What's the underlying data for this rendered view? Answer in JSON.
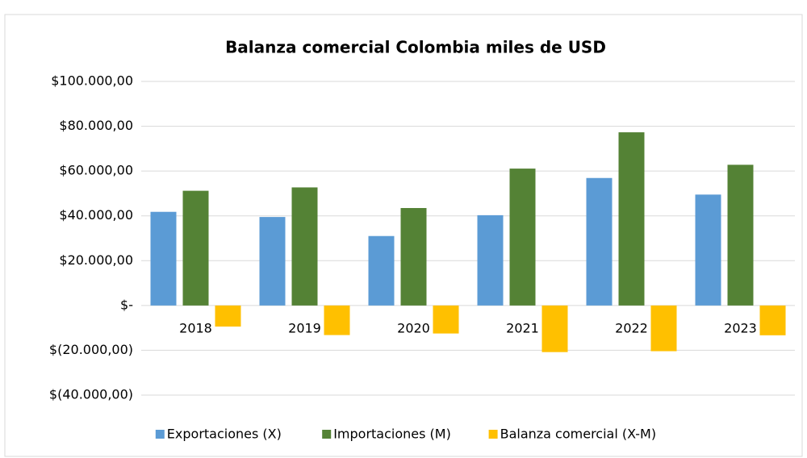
{
  "chart_data": {
    "type": "bar",
    "title": "Balanza comercial Colombia miles de USD",
    "categories": [
      "2018",
      "2019",
      "2020",
      "2021",
      "2022",
      "2023"
    ],
    "series": [
      {
        "name": "Exportaciones (X)",
        "color": "#5b9bd5",
        "values": [
          41800,
          39500,
          31000,
          40300,
          56900,
          49500
        ]
      },
      {
        "name": "Importaciones (M)",
        "color": "#548235",
        "values": [
          51200,
          52700,
          43500,
          61100,
          77300,
          62800
        ]
      },
      {
        "name": "Balanza comercial (X-M)",
        "color": "#ffc000",
        "values": [
          -9400,
          -13200,
          -12500,
          -20800,
          -20400,
          -13300
        ]
      }
    ],
    "ylim": [
      -40000,
      100000
    ],
    "yticks": [
      {
        "value": -40000,
        "label": "$(40.000,00)"
      },
      {
        "value": -20000,
        "label": "$(20.000,00)"
      },
      {
        "value": 0,
        "label": "$-"
      },
      {
        "value": 20000,
        "label": "$20.000,00"
      },
      {
        "value": 40000,
        "label": "$40.000,00"
      },
      {
        "value": 60000,
        "label": "$60.000,00"
      },
      {
        "value": 80000,
        "label": "$80.000,00"
      },
      {
        "value": 100000,
        "label": "$100.000,00"
      }
    ],
    "grid": true,
    "legend": "bottom"
  }
}
